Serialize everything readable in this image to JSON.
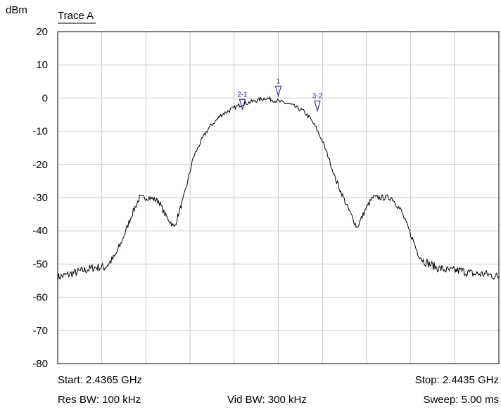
{
  "chart_data": {
    "type": "line",
    "ylabel": "dBm",
    "trace_label": "Trace A",
    "ylim": [
      -80,
      20
    ],
    "yticks": [
      "20",
      "10",
      "0",
      "-10",
      "-20",
      "-30",
      "-40",
      "-50",
      "-60",
      "-70",
      "-80"
    ],
    "xlim_ghz": [
      2.4365,
      2.4435
    ],
    "grid": true,
    "series": [
      {
        "name": "Trace A",
        "x_ghz": [
          2.4365,
          2.4367,
          2.4369,
          2.4371,
          2.43725,
          2.4374,
          2.4375,
          2.4376,
          2.4377,
          2.4378,
          2.43795,
          2.4381,
          2.4382,
          2.43835,
          2.4385,
          2.43865,
          2.4388,
          2.4389,
          2.439,
          2.4391,
          2.4392,
          2.4394,
          2.4396,
          2.4398,
          2.44,
          2.4402,
          2.4404,
          2.4405,
          2.4406,
          2.4407,
          2.4408,
          2.4409,
          2.4411,
          2.44125,
          2.4414,
          2.4415,
          2.4416,
          2.4418,
          2.44195,
          2.4421,
          2.4422,
          2.4423,
          2.4425,
          2.4427,
          2.4429,
          2.4431,
          2.4433,
          2.4435
        ],
        "values": [
          -54,
          -53,
          -52,
          -51,
          -51,
          -48,
          -44,
          -39,
          -34,
          -30,
          -30,
          -31,
          -35,
          -39,
          -30,
          -18,
          -12,
          -9,
          -7,
          -5,
          -4,
          -2,
          -1,
          0,
          -1,
          -2,
          -4,
          -6,
          -9,
          -13,
          -18,
          -24,
          -33,
          -39,
          -33,
          -30,
          -30,
          -30,
          -34,
          -41,
          -46,
          -49,
          -51,
          -52,
          -52,
          -53,
          -53,
          -54
        ]
      }
    ],
    "markers": [
      {
        "label": "1",
        "x_ghz": 2.44,
        "value": 0
      },
      {
        "label": "2-1",
        "x_ghz": 2.43943,
        "value": -4
      },
      {
        "label": "3-2",
        "x_ghz": 2.44062,
        "value": -4.5
      }
    ]
  },
  "footer": {
    "start": "Start: 2.4365 GHz",
    "stop": "Stop: 2.4435 GHz",
    "res_bw": "Res BW: 100 kHz",
    "vid_bw": "Vid BW: 300 kHz",
    "sweep": "Sweep: 5.00 ms"
  },
  "colors": {
    "trace": "#000000",
    "grid": "#c8c8c8",
    "marker": "#1a1a8c",
    "frame": "#000000"
  }
}
